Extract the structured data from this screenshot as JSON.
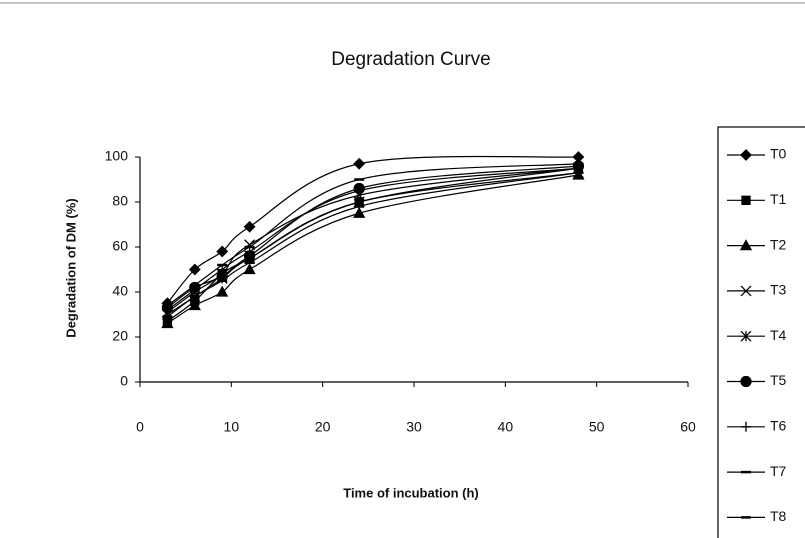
{
  "chart_data": {
    "type": "line",
    "title": "Degradation Curve",
    "x_label": "Time of incubation (h)",
    "y_label": "Degradation of DM (%)",
    "x": [
      3,
      6,
      9,
      12,
      24,
      48
    ],
    "xlim": [
      0,
      60
    ],
    "xticks": [
      0,
      10,
      20,
      30,
      40,
      50,
      60
    ],
    "ylim": [
      0,
      100
    ],
    "yticks": [
      0,
      20,
      40,
      60,
      80,
      100
    ],
    "smooth": true,
    "legend": "right",
    "series": [
      {
        "name": "T0",
        "color": "#000000",
        "marker": "diamond",
        "values": [
          35,
          50,
          58,
          69,
          97,
          100
        ]
      },
      {
        "name": "T1",
        "color": "#000000",
        "marker": "square",
        "values": [
          27,
          36,
          48,
          55,
          80,
          95
        ]
      },
      {
        "name": "T2",
        "color": "#000000",
        "marker": "triangle",
        "values": [
          26,
          34,
          40,
          50,
          75,
          92
        ]
      },
      {
        "name": "T3",
        "color": "#000000",
        "marker": "x",
        "values": [
          31,
          40,
          48,
          61,
          83,
          95
        ]
      },
      {
        "name": "T4",
        "color": "#000000",
        "marker": "star",
        "values": [
          30,
          38,
          46,
          55,
          80,
          93
        ]
      },
      {
        "name": "T5",
        "color": "#000000",
        "marker": "circle",
        "values": [
          33,
          42,
          47,
          56,
          86,
          96
        ]
      },
      {
        "name": "T6",
        "color": "#000000",
        "marker": "plus",
        "values": [
          32,
          41,
          50,
          58,
          85,
          95
        ]
      },
      {
        "name": "T7",
        "color": "#000000",
        "marker": "dash",
        "values": [
          29,
          38,
          45,
          53,
          78,
          93
        ]
      },
      {
        "name": "T8",
        "color": "#000000",
        "marker": "dash",
        "values": [
          34,
          43,
          52,
          60,
          90,
          97
        ]
      }
    ]
  }
}
